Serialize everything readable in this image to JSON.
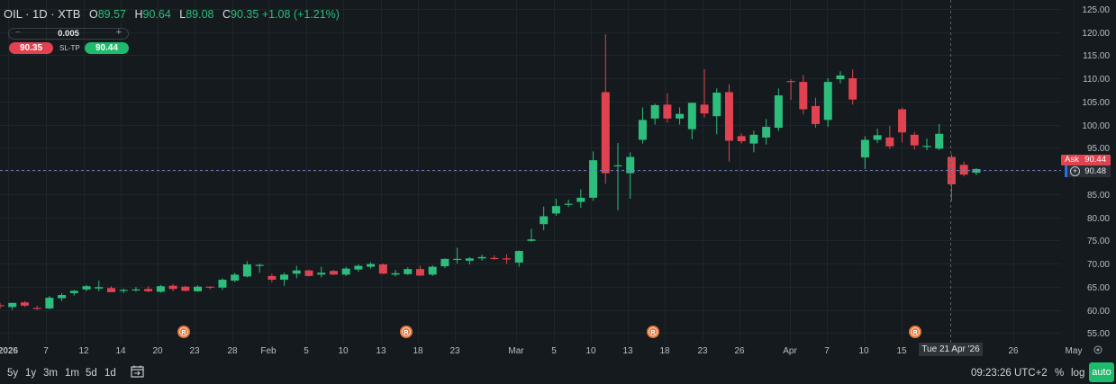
{
  "header": {
    "symbol": "OIL · 1D · XTB",
    "open_label": "O",
    "open": "89.57",
    "high_label": "H",
    "high": "90.64",
    "low_label": "L",
    "low": "89.08",
    "close_label": "C",
    "close": "90.35",
    "change": "+1.08 (+1.21%)"
  },
  "trade": {
    "quantity": "0.005",
    "minus": "−",
    "plus": "+",
    "sell_price": "90.35",
    "sltp_label": "SL-TP",
    "buy_price": "90.44"
  },
  "price_tags": {
    "ask_label": "Ask",
    "ask_value": "90.44",
    "current_value": "90.48"
  },
  "crosshair_date": "Tue 21 Apr '26",
  "bottom_bar": {
    "ranges": [
      "5y",
      "1y",
      "3m",
      "1m",
      "5d",
      "1d"
    ],
    "clock": "09:23:26 UTC+2",
    "percent_label": "%",
    "log_label": "log",
    "auto_label": "auto"
  },
  "colors": {
    "background": "#141a1d",
    "up": "#2dbd7c",
    "down": "#e0434f",
    "grid": "#1f2629",
    "dividend_marker": "#e2733a"
  },
  "chart_data": {
    "type": "candlestick",
    "y_ticks": [
      55,
      60,
      65,
      70,
      75,
      80,
      85,
      90,
      95,
      100,
      105,
      110,
      115,
      120,
      125
    ],
    "ylim": [
      54,
      127
    ],
    "x_ticks": [
      "2026",
      "7",
      "12",
      "14",
      "20",
      "23",
      "28",
      "Feb",
      "5",
      "10",
      "13",
      "18",
      "23",
      "Mar",
      "5",
      "10",
      "13",
      "18",
      "23",
      "26",
      "Apr",
      "7",
      "10",
      "15",
      "26",
      "May"
    ],
    "markers": [
      "R",
      "R",
      "R",
      "R"
    ],
    "candles": [
      {
        "o": 61.0,
        "h": 61.5,
        "l": 60.3,
        "c": 60.8
      },
      {
        "o": 60.6,
        "h": 61.5,
        "l": 60.0,
        "c": 61.5
      },
      {
        "o": 61.6,
        "h": 61.9,
        "l": 60.6,
        "c": 60.9
      },
      {
        "o": 60.4,
        "h": 60.9,
        "l": 60.0,
        "c": 60.3
      },
      {
        "o": 60.3,
        "h": 63.0,
        "l": 60.1,
        "c": 62.6
      },
      {
        "o": 62.5,
        "h": 63.6,
        "l": 61.9,
        "c": 63.2
      },
      {
        "o": 63.6,
        "h": 64.3,
        "l": 63.1,
        "c": 64.1
      },
      {
        "o": 64.4,
        "h": 65.4,
        "l": 64.0,
        "c": 65.1
      },
      {
        "o": 64.6,
        "h": 66.3,
        "l": 64.0,
        "c": 64.9
      },
      {
        "o": 64.7,
        "h": 65.1,
        "l": 63.9,
        "c": 63.8
      },
      {
        "o": 64.1,
        "h": 64.6,
        "l": 63.6,
        "c": 64.3
      },
      {
        "o": 64.3,
        "h": 64.9,
        "l": 63.9,
        "c": 64.4
      },
      {
        "o": 64.5,
        "h": 65.1,
        "l": 63.8,
        "c": 64.0
      },
      {
        "o": 63.9,
        "h": 65.4,
        "l": 63.7,
        "c": 65.1
      },
      {
        "o": 65.2,
        "h": 65.6,
        "l": 64.0,
        "c": 64.5
      },
      {
        "o": 65.0,
        "h": 65.2,
        "l": 64.0,
        "c": 64.1
      },
      {
        "o": 64.0,
        "h": 65.3,
        "l": 63.9,
        "c": 65.0
      },
      {
        "o": 65.0,
        "h": 65.1,
        "l": 64.4,
        "c": 64.8
      },
      {
        "o": 64.8,
        "h": 66.8,
        "l": 64.3,
        "c": 66.5
      },
      {
        "o": 66.3,
        "h": 68.0,
        "l": 66.0,
        "c": 67.6
      },
      {
        "o": 67.2,
        "h": 70.5,
        "l": 67.0,
        "c": 69.8
      },
      {
        "o": 69.5,
        "h": 70.0,
        "l": 68.0,
        "c": 69.7
      },
      {
        "o": 67.3,
        "h": 67.8,
        "l": 65.9,
        "c": 66.5
      },
      {
        "o": 66.5,
        "h": 68.0,
        "l": 65.2,
        "c": 67.6
      },
      {
        "o": 67.8,
        "h": 69.5,
        "l": 66.8,
        "c": 68.5
      },
      {
        "o": 68.5,
        "h": 68.7,
        "l": 67.2,
        "c": 67.3
      },
      {
        "o": 67.6,
        "h": 69.3,
        "l": 67.0,
        "c": 68.0
      },
      {
        "o": 68.4,
        "h": 68.6,
        "l": 67.5,
        "c": 67.6
      },
      {
        "o": 67.6,
        "h": 69.3,
        "l": 67.3,
        "c": 68.9
      },
      {
        "o": 68.7,
        "h": 69.8,
        "l": 68.2,
        "c": 69.5
      },
      {
        "o": 69.3,
        "h": 70.3,
        "l": 68.9,
        "c": 69.9
      },
      {
        "o": 69.8,
        "h": 70.0,
        "l": 67.7,
        "c": 67.8
      },
      {
        "o": 67.6,
        "h": 68.6,
        "l": 67.2,
        "c": 67.9
      },
      {
        "o": 67.7,
        "h": 69.2,
        "l": 67.5,
        "c": 68.8
      },
      {
        "o": 68.8,
        "h": 69.5,
        "l": 67.3,
        "c": 67.4
      },
      {
        "o": 67.6,
        "h": 69.6,
        "l": 67.3,
        "c": 69.3
      },
      {
        "o": 69.4,
        "h": 71.1,
        "l": 69.0,
        "c": 71.0
      },
      {
        "o": 71.0,
        "h": 73.4,
        "l": 70.0,
        "c": 71.0
      },
      {
        "o": 70.6,
        "h": 71.4,
        "l": 69.8,
        "c": 71.1
      },
      {
        "o": 71.1,
        "h": 71.9,
        "l": 70.6,
        "c": 71.4
      },
      {
        "o": 71.2,
        "h": 71.8,
        "l": 70.8,
        "c": 71.0
      },
      {
        "o": 71.1,
        "h": 72.0,
        "l": 69.9,
        "c": 70.9
      },
      {
        "o": 70.2,
        "h": 72.8,
        "l": 69.3,
        "c": 72.7
      },
      {
        "o": 74.9,
        "h": 77.5,
        "l": 74.7,
        "c": 75.2
      },
      {
        "o": 78.5,
        "h": 82.3,
        "l": 77.2,
        "c": 80.2
      },
      {
        "o": 80.8,
        "h": 84.0,
        "l": 80.3,
        "c": 82.4
      },
      {
        "o": 82.7,
        "h": 83.8,
        "l": 82.2,
        "c": 82.9
      },
      {
        "o": 83.3,
        "h": 86.0,
        "l": 82.0,
        "c": 84.2
      },
      {
        "o": 84.2,
        "h": 94.2,
        "l": 83.5,
        "c": 92.3
      },
      {
        "o": 107.0,
        "h": 119.5,
        "l": 87.2,
        "c": 89.5
      },
      {
        "o": 91.0,
        "h": 96.0,
        "l": 81.5,
        "c": 91.2
      },
      {
        "o": 89.5,
        "h": 94.0,
        "l": 84.0,
        "c": 93.0
      },
      {
        "o": 96.7,
        "h": 103.7,
        "l": 95.9,
        "c": 101.0
      },
      {
        "o": 101.3,
        "h": 104.5,
        "l": 100.0,
        "c": 104.2
      },
      {
        "o": 104.3,
        "h": 106.8,
        "l": 100.4,
        "c": 101.3
      },
      {
        "o": 101.3,
        "h": 103.7,
        "l": 100.0,
        "c": 102.3
      },
      {
        "o": 99.0,
        "h": 104.4,
        "l": 96.8,
        "c": 104.7
      },
      {
        "o": 104.3,
        "h": 112.0,
        "l": 101.5,
        "c": 102.4
      },
      {
        "o": 101.8,
        "h": 107.8,
        "l": 97.9,
        "c": 106.9
      },
      {
        "o": 107.0,
        "h": 108.7,
        "l": 92.0,
        "c": 96.5
      },
      {
        "o": 97.5,
        "h": 98.1,
        "l": 95.9,
        "c": 96.4
      },
      {
        "o": 95.9,
        "h": 98.7,
        "l": 94.0,
        "c": 97.8
      },
      {
        "o": 97.2,
        "h": 101.2,
        "l": 95.7,
        "c": 99.5
      },
      {
        "o": 99.3,
        "h": 107.8,
        "l": 98.6,
        "c": 106.3
      },
      {
        "o": 109.4,
        "h": 109.8,
        "l": 105.3,
        "c": 109.3
      },
      {
        "o": 109.2,
        "h": 110.7,
        "l": 102.2,
        "c": 103.3
      },
      {
        "o": 104.0,
        "h": 105.8,
        "l": 99.3,
        "c": 100.1
      },
      {
        "o": 101.0,
        "h": 110.0,
        "l": 99.5,
        "c": 109.2
      },
      {
        "o": 109.8,
        "h": 111.5,
        "l": 108.9,
        "c": 110.6
      },
      {
        "o": 110.0,
        "h": 111.9,
        "l": 104.3,
        "c": 105.4
      },
      {
        "o": 92.9,
        "h": 97.5,
        "l": 90.4,
        "c": 96.7
      },
      {
        "o": 96.7,
        "h": 99.1,
        "l": 96.0,
        "c": 97.7
      },
      {
        "o": 97.2,
        "h": 99.7,
        "l": 94.7,
        "c": 95.3
      },
      {
        "o": 103.3,
        "h": 103.7,
        "l": 96.1,
        "c": 98.3
      },
      {
        "o": 97.8,
        "h": 98.4,
        "l": 94.6,
        "c": 95.5
      },
      {
        "o": 95.2,
        "h": 97.0,
        "l": 94.5,
        "c": 95.4
      },
      {
        "o": 94.8,
        "h": 100.1,
        "l": 94.5,
        "c": 98.0
      },
      {
        "o": 93.0,
        "h": 93.6,
        "l": 83.5,
        "c": 87.1
      },
      {
        "o": 91.3,
        "h": 92.0,
        "l": 88.8,
        "c": 89.2
      },
      {
        "o": 89.6,
        "h": 90.6,
        "l": 89.1,
        "c": 90.4
      }
    ]
  }
}
